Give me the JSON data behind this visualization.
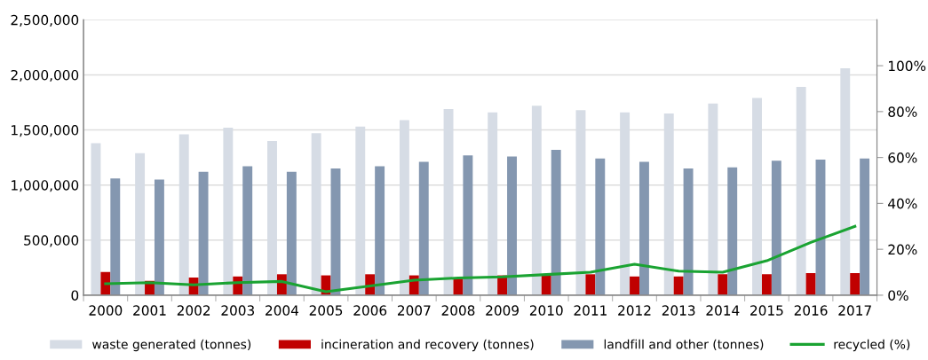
{
  "chart_data": {
    "type": "bar",
    "categories": [
      "2000",
      "2001",
      "2002",
      "2003",
      "2004",
      "2005",
      "2006",
      "2007",
      "2008",
      "2009",
      "2010",
      "2011",
      "2012",
      "2013",
      "2014",
      "2015",
      "2016",
      "2017"
    ],
    "series": [
      {
        "name": "waste generated (tonnes)",
        "color": "#d6dce5",
        "values": [
          1380000,
          1290000,
          1460000,
          1520000,
          1400000,
          1470000,
          1530000,
          1590000,
          1690000,
          1660000,
          1720000,
          1680000,
          1660000,
          1650000,
          1740000,
          1790000,
          1890000,
          2060000
        ]
      },
      {
        "name": "incineration and recovery (tonnes)",
        "color": "#c00000",
        "values": [
          210000,
          130000,
          160000,
          170000,
          190000,
          180000,
          190000,
          180000,
          150000,
          180000,
          180000,
          190000,
          170000,
          170000,
          190000,
          190000,
          200000,
          200000
        ]
      },
      {
        "name": "landfill and other (tonnes)",
        "color": "#8497b0",
        "values": [
          1060000,
          1050000,
          1120000,
          1170000,
          1120000,
          1150000,
          1170000,
          1210000,
          1270000,
          1260000,
          1320000,
          1240000,
          1210000,
          1150000,
          1160000,
          1220000,
          1230000,
          1240000
        ]
      },
      {
        "name": "recycled (%)",
        "color": "#1aa332",
        "type": "line",
        "axis": "y2",
        "values": [
          5,
          5.5,
          4.5,
          5.5,
          6,
          1.5,
          4,
          6.5,
          7.5,
          8,
          9,
          10,
          13.5,
          10.5,
          10,
          15,
          23,
          30
        ]
      }
    ],
    "ylim": [
      0,
      2500000
    ],
    "yticks": [
      {
        "value": 0,
        "label": "0"
      },
      {
        "value": 500000,
        "label": "500,000"
      },
      {
        "value": 1000000,
        "label": "1,000,000"
      },
      {
        "value": 1500000,
        "label": "1,500,000"
      },
      {
        "value": 2000000,
        "label": "2,000,000"
      },
      {
        "value": 2500000,
        "label": "2,500,000"
      }
    ],
    "y2lim": [
      0,
      120
    ],
    "y2ticks": [
      {
        "value": 0,
        "label": "0%"
      },
      {
        "value": 20,
        "label": "20%"
      },
      {
        "value": 40,
        "label": "40%"
      },
      {
        "value": 60,
        "label": "60%"
      },
      {
        "value": 80,
        "label": "80%"
      },
      {
        "value": 100,
        "label": "100%"
      }
    ],
    "grid": "y",
    "legend": "bottom",
    "marker": "none",
    "line_style": "solid"
  }
}
